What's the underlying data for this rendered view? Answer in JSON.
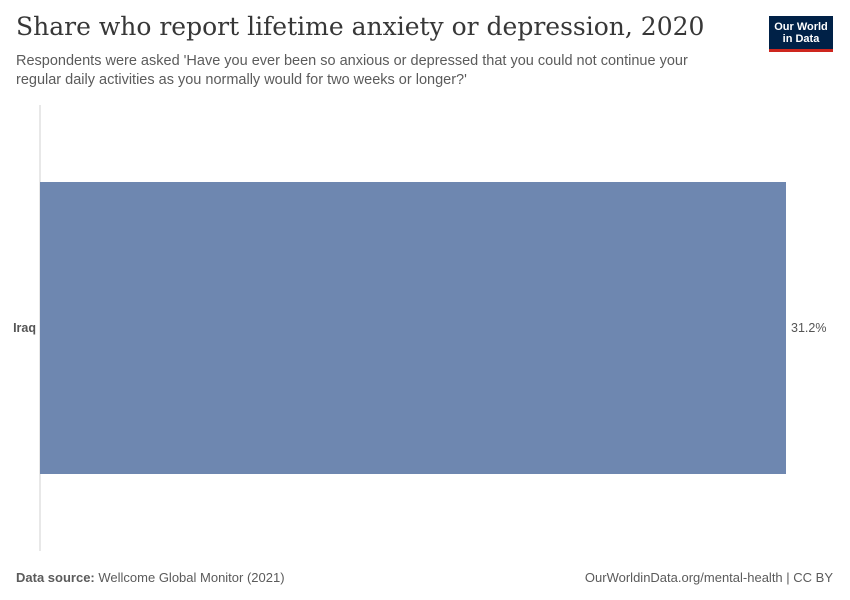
{
  "title": "Share who report lifetime anxiety or depression, 2020",
  "subtitle": "Respondents were asked 'Have you ever been so anxious or depressed that you could not continue your regular daily activities as you normally would for two weeks or longer?'",
  "logo": {
    "line1": "Our World",
    "line2": "in Data",
    "bg_color": "#002147",
    "accent_color": "#ce261e"
  },
  "footer": {
    "source_label": "Data source:",
    "source_value": "Wellcome Global Monitor (2021)",
    "url_license": "OurWorldinData.org/mental-health | CC BY"
  },
  "chart_data": {
    "type": "bar",
    "orientation": "horizontal",
    "categories": [
      "Iraq"
    ],
    "values": [
      31.2
    ],
    "value_labels": [
      "31.2%"
    ],
    "unit": "%",
    "bar_color": "#6e87b0",
    "xlim": [
      0,
      31.2
    ],
    "grid": false
  }
}
